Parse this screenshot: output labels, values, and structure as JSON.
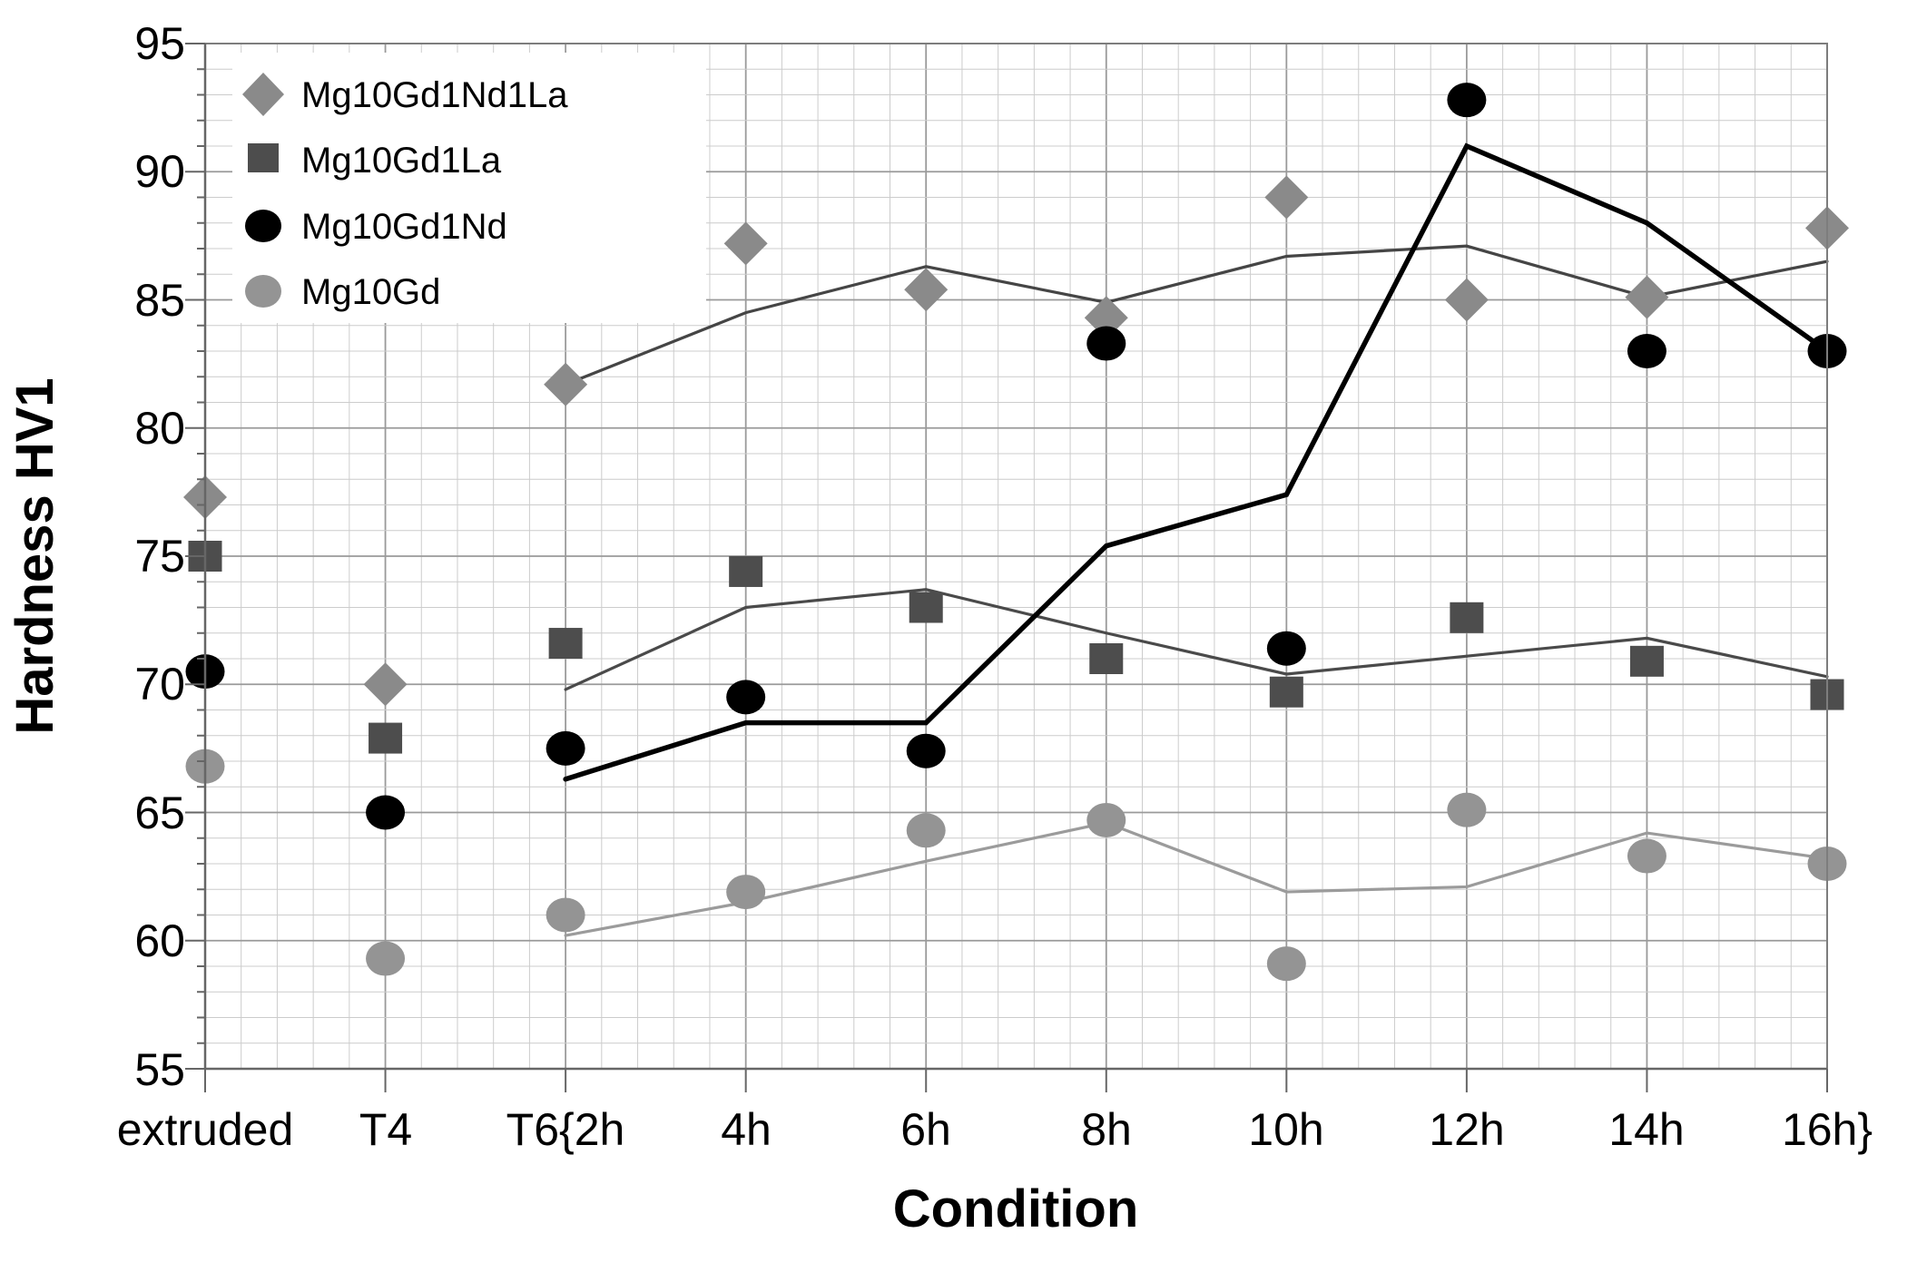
{
  "chart_data": {
    "type": "scatter",
    "title": "",
    "xlabel": "Condition",
    "ylabel": "Hardness HV1",
    "ylim": [
      55,
      95
    ],
    "y_tick_step": 5,
    "y_minor_step": 1,
    "grid": "both-minor-and-major",
    "legend_position": "top-left-inside",
    "y_tick_labels": [
      "95",
      "90",
      "85",
      "80",
      "75",
      "70",
      "65",
      "60",
      "55"
    ],
    "categories": [
      "extruded",
      "T4",
      "T6{2h",
      "4h",
      "6h",
      "8h",
      "10h",
      "12h",
      "14h",
      "16h}"
    ],
    "series": [
      {
        "name": "Mg10Gd1Nd1La",
        "marker": "diamond",
        "color": "#8a8a8a",
        "values": [
          77.3,
          70.0,
          81.7,
          87.2,
          85.4,
          84.3,
          89.0,
          85.0,
          85.1,
          87.8
        ]
      },
      {
        "name": "Mg10Gd1La",
        "marker": "square",
        "color": "#4d4d4d",
        "values": [
          75.0,
          67.9,
          71.6,
          74.4,
          73.0,
          71.0,
          69.7,
          72.6,
          70.9,
          69.6
        ]
      },
      {
        "name": "Mg10Gd1Nd",
        "marker": "circle",
        "color": "#000000",
        "values": [
          70.5,
          65.0,
          67.5,
          69.5,
          67.4,
          83.3,
          71.4,
          92.8,
          83.0,
          83.0
        ]
      },
      {
        "name": "Mg10Gd",
        "marker": "circle",
        "color": "#949494",
        "values": [
          66.8,
          59.3,
          61.0,
          61.9,
          64.3,
          64.7,
          59.1,
          65.1,
          63.3,
          63.0
        ]
      }
    ],
    "trend_lines": [
      {
        "series": "Mg10Gd1Nd1La",
        "color": "#454545",
        "width": 3.2,
        "start_category": "T6{2h",
        "values": [
          81.7,
          84.5,
          86.3,
          84.9,
          86.7,
          87.1,
          85.1,
          86.5
        ]
      },
      {
        "series": "Mg10Gd1La",
        "color": "#4a4a4a",
        "width": 3.2,
        "start_category": "T6{2h",
        "values": [
          69.8,
          73.0,
          73.7,
          72.0,
          70.4,
          71.1,
          71.8,
          70.3
        ]
      },
      {
        "series": "Mg10Gd1Nd",
        "color": "#000000",
        "width": 5.5,
        "start_category": "T6{2h",
        "values": [
          66.3,
          68.5,
          68.5,
          75.4,
          77.4,
          91.0,
          88.0,
          83.0
        ]
      },
      {
        "series": "Mg10Gd",
        "color": "#9b9b9b",
        "width": 3.2,
        "start_category": "T6{2h",
        "values": [
          60.2,
          61.5,
          63.1,
          64.6,
          61.9,
          62.1,
          64.2,
          63.2
        ]
      }
    ]
  },
  "legend": {
    "items": [
      {
        "label": "Mg10Gd1Nd1La"
      },
      {
        "label": "Mg10Gd1La"
      },
      {
        "label": "Mg10Gd1Nd"
      },
      {
        "label": "Mg10Gd"
      }
    ]
  },
  "colors": {
    "grid_minor": "#cccccc",
    "grid_major": "#9a9a9a",
    "plot_border": "#7d7d7d",
    "axis": "#666666",
    "background": "#ffffff"
  }
}
